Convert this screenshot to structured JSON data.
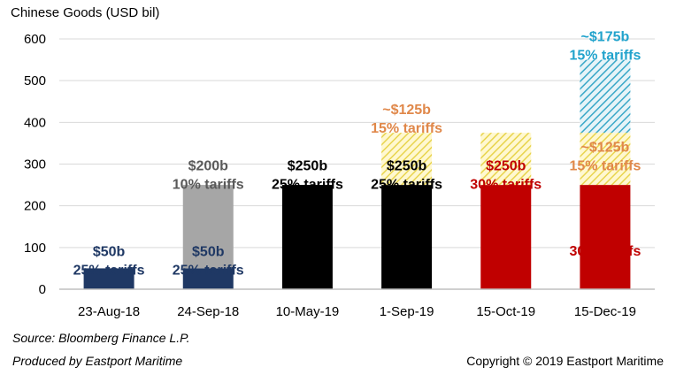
{
  "chart_data": {
    "type": "bar",
    "stacked": true,
    "ylabel": "Chinese Goods (USD bil)",
    "ylim": [
      0,
      600
    ],
    "yticks": [
      0,
      100,
      200,
      300,
      400,
      500,
      600
    ],
    "grid": true,
    "categories": [
      "23-Aug-18",
      "24-Sep-18",
      "10-May-19",
      "1-Sep-19",
      "15-Oct-19",
      "15-Dec-19"
    ],
    "bars": [
      {
        "category": "23-Aug-18",
        "segments": [
          {
            "value": 50,
            "color": "#1f3864",
            "pattern": "solid"
          }
        ],
        "labels": [
          {
            "lines": [
              "$50b",
              "25% tariffs"
            ],
            "color": "#1f3864",
            "at": 80
          }
        ]
      },
      {
        "category": "24-Sep-18",
        "segments": [
          {
            "value": 50,
            "color": "#1f3864",
            "pattern": "solid"
          },
          {
            "value": 200,
            "color": "#a6a6a6",
            "pattern": "solid"
          }
        ],
        "labels": [
          {
            "lines": [
              "$50b",
              "25% tariffs"
            ],
            "color": "#1f3864",
            "at": 80
          },
          {
            "lines": [
              "$200b",
              "10% tariffs"
            ],
            "color": "#595959",
            "at": 285
          }
        ]
      },
      {
        "category": "10-May-19",
        "segments": [
          {
            "value": 250,
            "color": "#000000",
            "pattern": "solid"
          }
        ],
        "labels": [
          {
            "lines": [
              "$250b",
              "25% tariffs"
            ],
            "color": "#000000",
            "at": 285
          }
        ]
      },
      {
        "category": "1-Sep-19",
        "segments": [
          {
            "value": 250,
            "color": "#000000",
            "pattern": "solid"
          },
          {
            "value": 125,
            "color": "#e8d44d",
            "pattern": "hatch"
          }
        ],
        "labels": [
          {
            "lines": [
              "$250b",
              "25% tariffs"
            ],
            "color": "#000000",
            "at": 285
          },
          {
            "lines": [
              "~$125b",
              "15% tariffs"
            ],
            "color": "#e0884a",
            "at": 420
          }
        ]
      },
      {
        "category": "15-Oct-19",
        "segments": [
          {
            "value": 250,
            "color": "#c00000",
            "pattern": "solid"
          },
          {
            "value": 125,
            "color": "#e8d44d",
            "pattern": "hatch"
          }
        ],
        "labels": [
          {
            "lines": [
              "$250b",
              "30% tariffs"
            ],
            "color": "#c00000",
            "at": 285
          }
        ]
      },
      {
        "category": "15-Dec-19",
        "segments": [
          {
            "value": 250,
            "color": "#c00000",
            "pattern": "solid"
          },
          {
            "value": 125,
            "color": "#e8d44d",
            "pattern": "hatch"
          },
          {
            "value": 175,
            "color": "#3aa8c8",
            "pattern": "hatch"
          }
        ],
        "labels": [
          {
            "lines": [
              "$250b",
              "30% tariffs"
            ],
            "color": "#c00000",
            "at": 125
          },
          {
            "lines": [
              "~$125b",
              "15% tariffs"
            ],
            "color": "#e0884a",
            "at": 330
          },
          {
            "lines": [
              "~$175b",
              "15% tariffs"
            ],
            "color": "#22a3cc",
            "at": 595
          }
        ]
      }
    ]
  },
  "footer": {
    "source": "Source: Bloomberg Finance L.P.",
    "produced": "Produced by Eastport Maritime",
    "copyright": "Copyright © 2019 Eastport Maritime"
  }
}
